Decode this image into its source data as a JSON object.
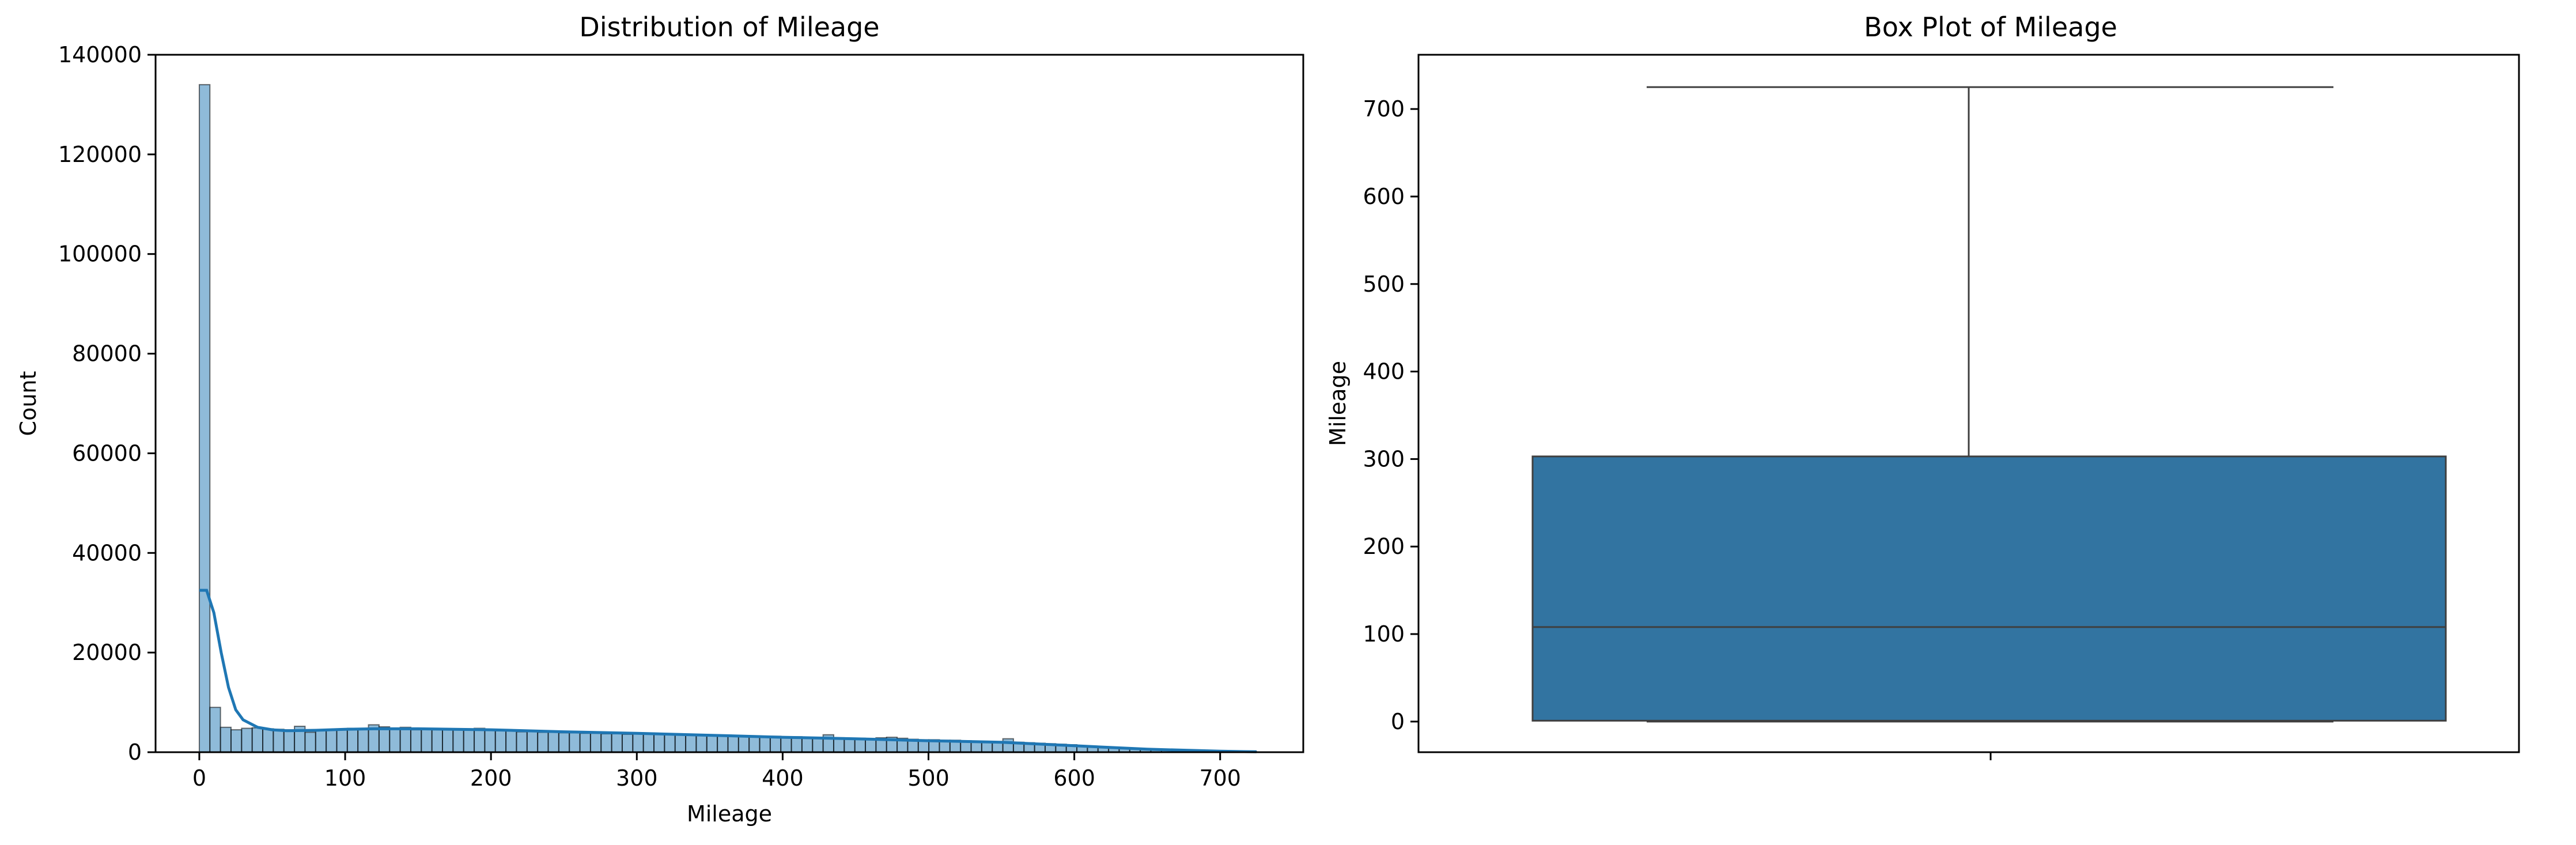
{
  "chart_data": [
    {
      "type": "histogram",
      "title": "Distribution of Mileage",
      "xlabel": "Mileage",
      "ylabel": "Count",
      "xlim": [
        -30,
        757
      ],
      "ylim": [
        0,
        140000
      ],
      "xticks": [
        0,
        100,
        200,
        300,
        400,
        500,
        600,
        700
      ],
      "yticks": [
        0,
        20000,
        40000,
        60000,
        80000,
        100000,
        120000,
        140000
      ],
      "bar_color": "#1f77b4",
      "bin_width": 7.25,
      "bin_start": 0,
      "counts": [
        134000,
        9000,
        5000,
        4500,
        4800,
        4900,
        4700,
        4600,
        4500,
        5200,
        4000,
        4500,
        4400,
        4600,
        4800,
        4800,
        5500,
        5100,
        4600,
        5000,
        4500,
        4600,
        4500,
        4500,
        4700,
        4500,
        4800,
        4600,
        4300,
        4300,
        4100,
        4300,
        4000,
        4000,
        3900,
        3900,
        3800,
        3800,
        3700,
        3700,
        3600,
        3900,
        3600,
        3600,
        3500,
        3500,
        3400,
        3400,
        3400,
        3300,
        3300,
        3300,
        3300,
        3200,
        3200,
        3100,
        3100,
        3000,
        2900,
        3500,
        2900,
        2800,
        2800,
        2700,
        2900,
        3000,
        2800,
        2600,
        2500,
        2500,
        2400,
        2400,
        2300,
        2200,
        2200,
        2100,
        2700,
        2000,
        1900,
        1800,
        1700,
        1600,
        1500,
        1300,
        1200,
        1100,
        1000,
        900,
        800,
        700,
        600,
        500,
        450,
        400,
        350,
        300,
        250,
        200,
        150,
        100
      ],
      "kde": {
        "x": [
          0,
          5,
          10,
          15,
          20,
          25,
          30,
          40,
          50,
          60,
          80,
          100,
          120,
          150,
          200,
          250,
          300,
          350,
          400,
          450,
          500,
          550,
          600,
          650,
          700,
          725
        ],
        "y": [
          32500,
          32500,
          28000,
          20000,
          13000,
          8500,
          6500,
          5000,
          4500,
          4300,
          4400,
          4600,
          4700,
          4700,
          4500,
          4100,
          3800,
          3400,
          3000,
          2700,
          2300,
          2000,
          1300,
          600,
          200,
          80
        ]
      }
    },
    {
      "type": "box",
      "title": "Box Plot of Mileage",
      "ylabel": "Mileage",
      "ylim": [
        -35,
        762
      ],
      "yticks": [
        0,
        100,
        200,
        300,
        400,
        500,
        600,
        700
      ],
      "box_color": "#3274a1",
      "stats": {
        "min": 0,
        "q1": 1,
        "median": 108,
        "q3": 303,
        "max": 725
      }
    }
  ]
}
